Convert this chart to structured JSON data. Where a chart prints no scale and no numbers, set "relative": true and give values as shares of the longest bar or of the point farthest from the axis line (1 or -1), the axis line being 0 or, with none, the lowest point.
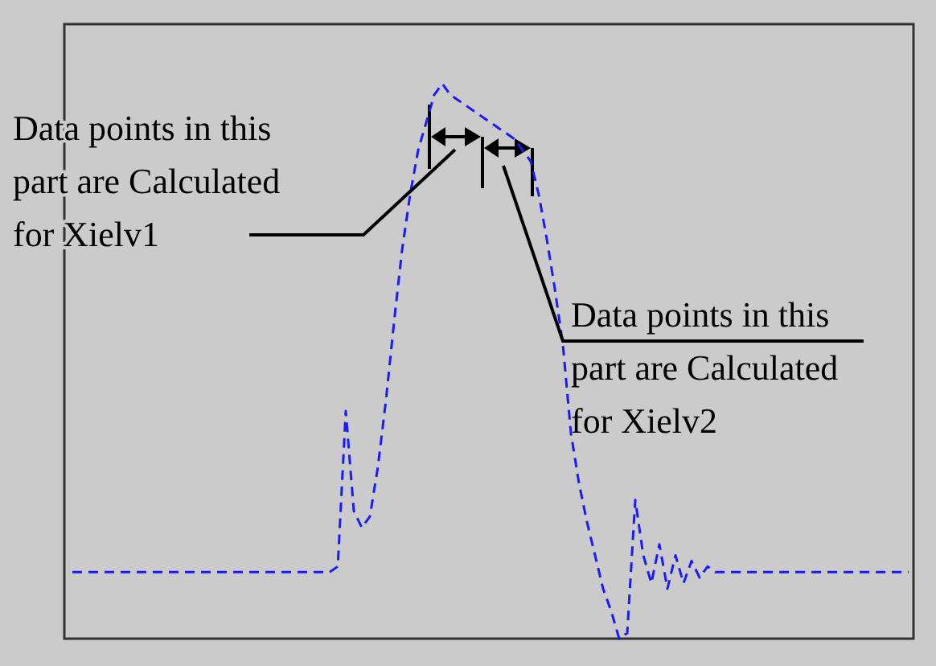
{
  "chart_data": {
    "type": "line",
    "relative": true,
    "line_style": "dashed",
    "tick_labels": false,
    "categories": [
      null,
      null,
      null,
      null,
      null,
      null,
      null,
      null,
      null,
      null,
      null,
      null,
      null,
      null,
      null,
      null,
      null,
      null,
      null,
      null,
      null,
      null,
      null,
      null,
      null,
      null,
      null,
      null,
      null,
      null,
      null,
      null,
      null,
      null,
      null,
      null,
      null,
      null,
      null,
      null,
      null,
      null,
      null,
      null,
      null,
      null,
      null,
      null,
      null,
      null,
      null,
      null,
      null,
      null,
      null,
      null,
      null,
      null,
      null,
      null,
      null,
      null,
      null,
      null,
      null,
      null,
      null,
      null,
      null,
      null,
      null,
      null,
      null,
      null,
      null,
      null,
      null,
      null,
      null,
      null,
      null,
      null,
      null,
      null,
      null,
      null,
      null,
      null,
      null,
      null,
      null,
      null,
      null,
      null,
      null,
      null,
      null,
      null,
      null,
      null,
      null,
      null,
      null,
      null,
      null
    ],
    "series": [
      {
        "color": "#1a1aff",
        "values": [
          0.12,
          0.12,
          0.12,
          0.12,
          0.12,
          0.12,
          0.12,
          0.12,
          0.12,
          0.12,
          0.12,
          0.12,
          0.12,
          0.12,
          0.12,
          0.12,
          0.12,
          0.12,
          0.12,
          0.12,
          0.12,
          0.12,
          0.12,
          0.12,
          0.12,
          0.12,
          0.12,
          0.12,
          0.12,
          0.12,
          0.12,
          0.12,
          0.12,
          0.13,
          0.41,
          0.23,
          0.2,
          0.22,
          0.31,
          0.43,
          0.57,
          0.7,
          0.8,
          0.88,
          0.93,
          0.98,
          1,
          0.98,
          0.97,
          0.96,
          0.95,
          0.94,
          0.93,
          0.92,
          0.91,
          0.9,
          0.88,
          0.86,
          0.8,
          0.72,
          0.63,
          0.53,
          0.37,
          0.28,
          0.21,
          0.15,
          0.09,
          0.05,
          0,
          0.01,
          0.25,
          0.15,
          0.1,
          0.17,
          0.09,
          0.15,
          0.1,
          0.14,
          0.11,
          0.13,
          0.12,
          0.12,
          0.12,
          0.12,
          0.12,
          0.12,
          0.12,
          0.12,
          0.12,
          0.12,
          0.12,
          0.12,
          0.12,
          0.12,
          0.12,
          0.12,
          0.12,
          0.12,
          0.12,
          0.12,
          0.12,
          0.12,
          0.12,
          0.12,
          0.12
        ]
      }
    ],
    "annotations": [
      "Data points in this part are Calculated for Xielv1",
      "Data points in this part are Calculated for Xielv2"
    ]
  }
}
